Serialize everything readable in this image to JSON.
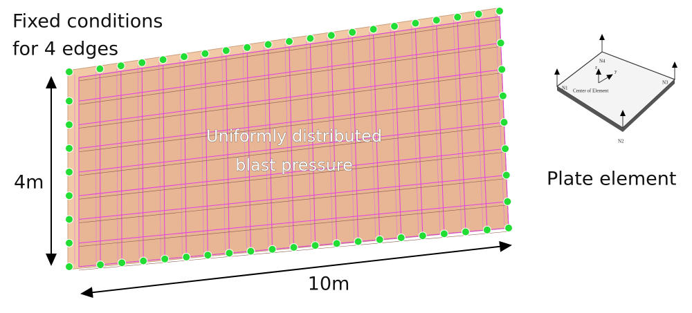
{
  "annotations": {
    "fixed_conditions": [
      "Fixed conditions",
      "for 4 edges"
    ],
    "pressure": [
      "Uniformly distributed",
      "blast pressure"
    ],
    "height": "4m",
    "width": "10m",
    "plate_label": "Plate element"
  },
  "plate_element": {
    "nodes": [
      "N1",
      "N2",
      "N3",
      "N4"
    ],
    "center": "Center of Element",
    "axes": [
      "z",
      "y"
    ]
  }
}
